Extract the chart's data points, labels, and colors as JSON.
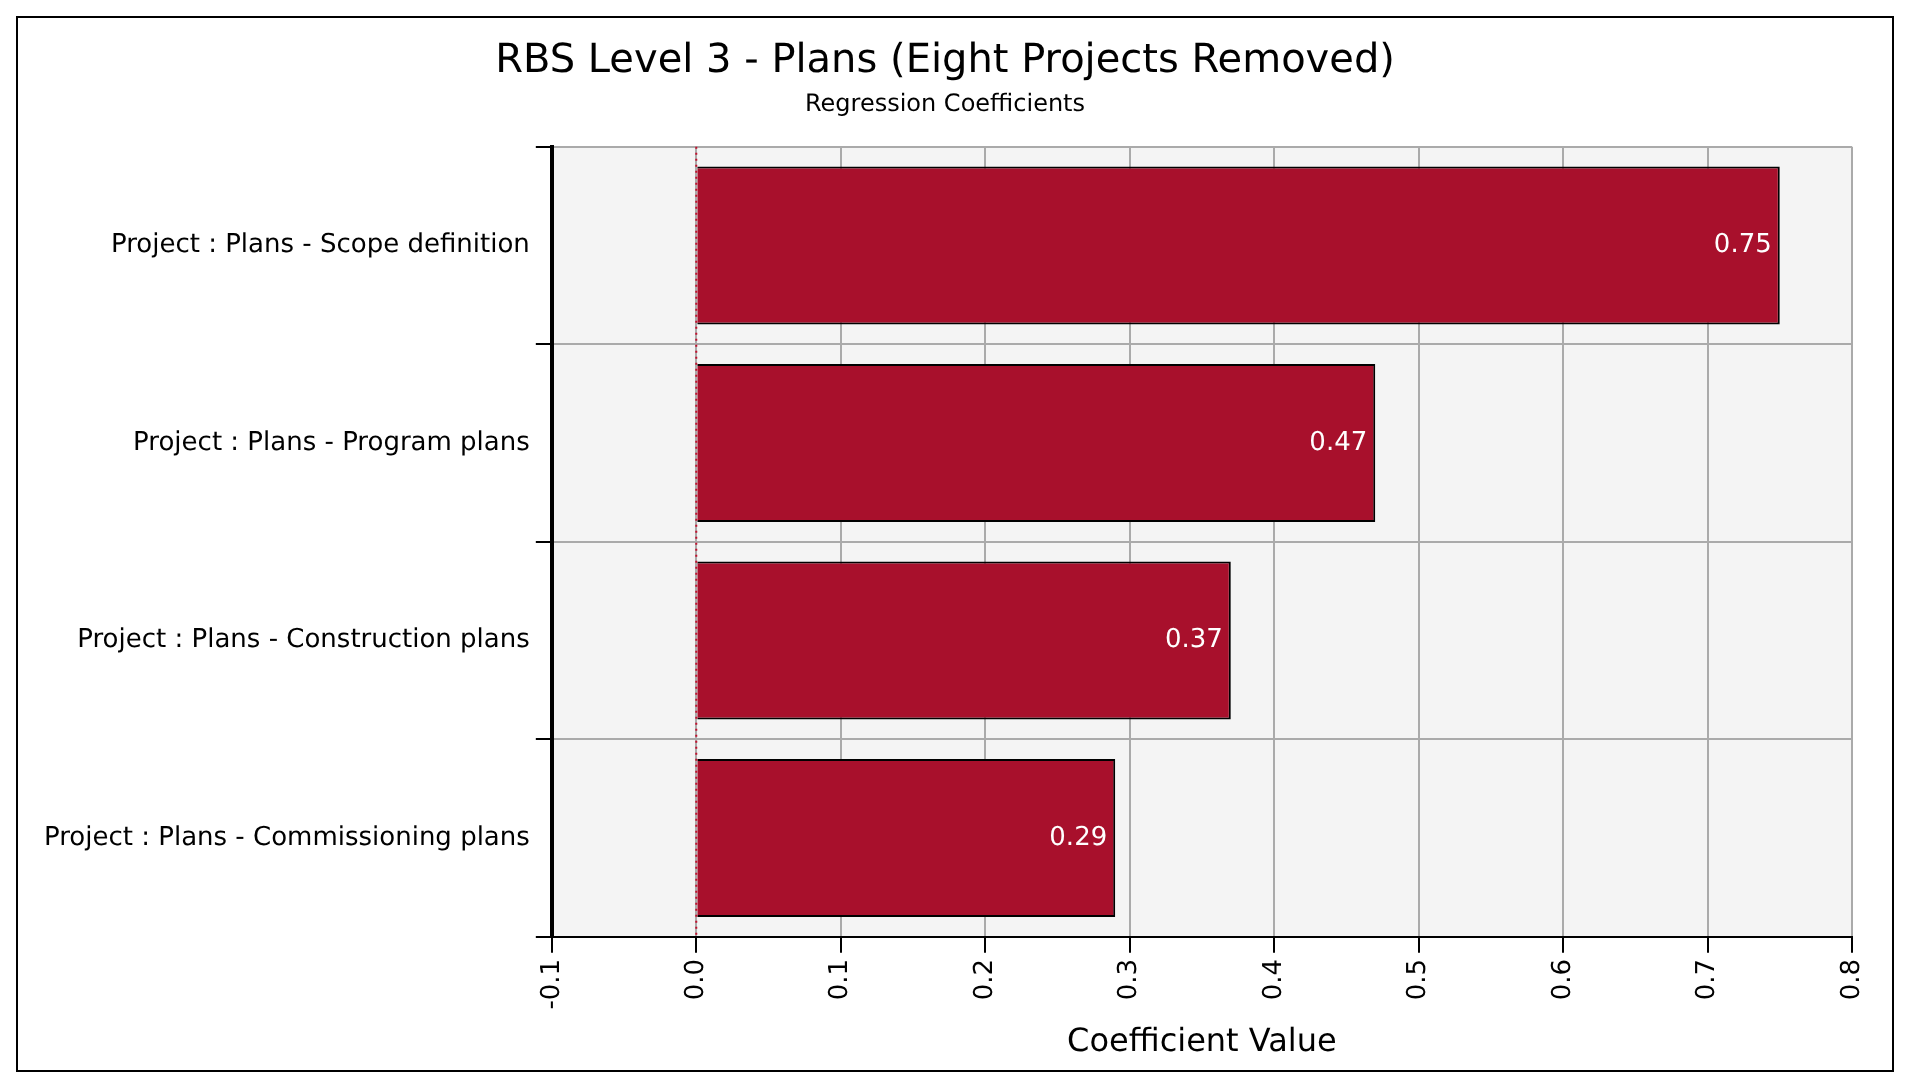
{
  "chart_data": {
    "type": "bar",
    "orientation": "horizontal",
    "title": "RBS Level 3 - Plans (Eight Projects Removed)",
    "subtitle": "Regression Coefficients",
    "xlabel": "Coefficient Value",
    "categories": [
      "Project : Plans - Scope definition",
      "Project : Plans - Program plans",
      "Project : Plans - Construction plans",
      "Project : Plans - Commissioning plans"
    ],
    "values": [
      0.75,
      0.47,
      0.37,
      0.29
    ],
    "value_labels": [
      "0.75",
      "0.47",
      "0.37",
      "0.29"
    ],
    "color": "#a8102c",
    "xlim": [
      -0.1,
      0.8
    ],
    "xticks": [
      {
        "value": -0.1,
        "label": "-0.1"
      },
      {
        "value": 0,
        "label": "0.0"
      },
      {
        "value": 0.1,
        "label": "0.1"
      },
      {
        "value": 0.2,
        "label": "0.2"
      },
      {
        "value": 0.3,
        "label": "0.3"
      },
      {
        "value": 0.4,
        "label": "0.4"
      },
      {
        "value": 0.5,
        "label": "0.5"
      },
      {
        "value": 0.6,
        "label": "0.6"
      },
      {
        "value": 0.7,
        "label": "0.7"
      },
      {
        "value": 0.8,
        "label": "0.8"
      }
    ],
    "ref_lines": [
      {
        "axis": "x",
        "value": 0,
        "color": "#c0102c",
        "line_style": "dotted"
      }
    ],
    "grid": true,
    "legend": false
  }
}
